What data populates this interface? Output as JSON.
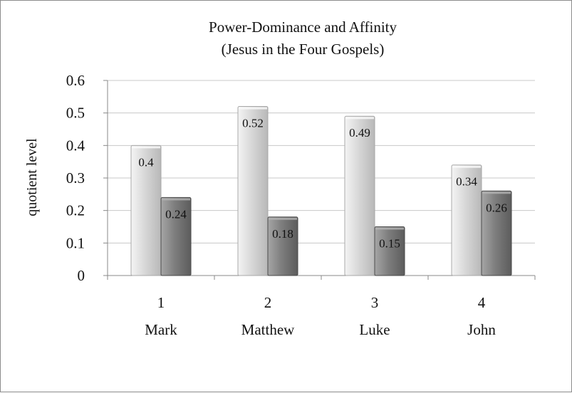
{
  "chart_data": {
    "type": "bar",
    "title": "Power-Dominance and Affinity",
    "subtitle": "(Jesus in the Four Gospels)",
    "ylabel": "quotient level",
    "xlabel": "",
    "ylim": [
      0,
      0.6
    ],
    "yticks": [
      "0",
      "0.1",
      "0.2",
      "0.3",
      "0.4",
      "0.5",
      "0.6"
    ],
    "categories": [
      "1",
      "2",
      "3",
      "4"
    ],
    "category_names": [
      "Mark",
      "Matthew",
      "Luke",
      "John"
    ],
    "grid": true,
    "series": [
      {
        "values": [
          0.4,
          0.52,
          0.49,
          0.34
        ],
        "labels": [
          "0.4",
          "0.52",
          "0.49",
          "0.34"
        ],
        "color": "#d9d9d9"
      },
      {
        "values": [
          0.24,
          0.18,
          0.15,
          0.26
        ],
        "labels": [
          "0.24",
          "0.18",
          "0.15",
          "0.26"
        ],
        "color": "#7f7f7f"
      }
    ]
  }
}
